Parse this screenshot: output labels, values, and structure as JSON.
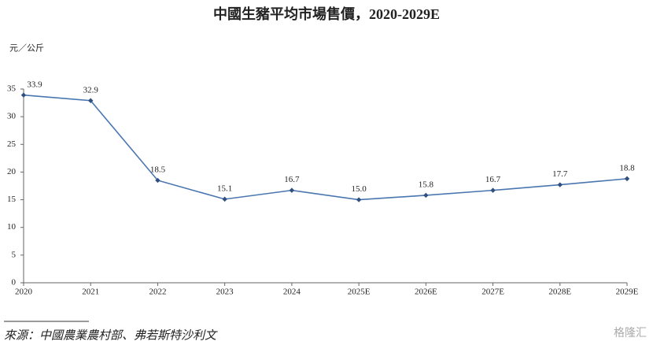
{
  "chart_data": {
    "type": "line",
    "title": "中國生豬平均市場售價，2020-2029E",
    "y_axis_label": "元／公斤",
    "categories": [
      "2020",
      "2021",
      "2022",
      "2023",
      "2024",
      "2025E",
      "2026E",
      "2027E",
      "2028E",
      "2029E"
    ],
    "values": [
      33.9,
      32.9,
      18.5,
      15.1,
      16.7,
      15.0,
      15.8,
      16.7,
      17.7,
      18.8
    ],
    "value_labels": [
      "33.9",
      "32.9",
      "18.5",
      "15.1",
      "16.7",
      "15.0",
      "15.8",
      "16.7",
      "17.7",
      "18.8"
    ],
    "color": "#4a76b0",
    "ylim": [
      0,
      35
    ],
    "yticks": [
      0,
      5,
      10,
      15,
      20,
      25,
      30,
      35
    ],
    "source": "來源：中國農業農村部、弗若斯特沙利文",
    "watermark": "格隆汇"
  }
}
